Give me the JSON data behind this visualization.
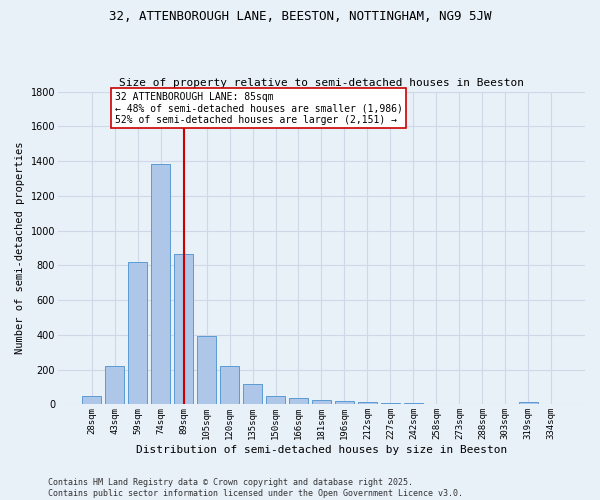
{
  "title_line1": "32, ATTENBOROUGH LANE, BEESTON, NOTTINGHAM, NG9 5JW",
  "title_line2": "Size of property relative to semi-detached houses in Beeston",
  "xlabel": "Distribution of semi-detached houses by size in Beeston",
  "ylabel": "Number of semi-detached properties",
  "bar_labels": [
    "28sqm",
    "43sqm",
    "59sqm",
    "74sqm",
    "89sqm",
    "105sqm",
    "120sqm",
    "135sqm",
    "150sqm",
    "166sqm",
    "181sqm",
    "196sqm",
    "212sqm",
    "227sqm",
    "242sqm",
    "258sqm",
    "273sqm",
    "288sqm",
    "303sqm",
    "319sqm",
    "334sqm"
  ],
  "bar_values": [
    50,
    220,
    820,
    1385,
    865,
    395,
    220,
    120,
    50,
    35,
    25,
    20,
    15,
    10,
    8,
    5,
    0,
    3,
    0,
    12,
    0
  ],
  "bar_color": "#aec6e8",
  "bar_edge_color": "#5b9bd5",
  "vline_x": 4,
  "vline_color": "#cc0000",
  "annotation_text": "32 ATTENBOROUGH LANE: 85sqm\n← 48% of semi-detached houses are smaller (1,986)\n52% of semi-detached houses are larger (2,151) →",
  "annotation_box_color": "#ffffff",
  "annotation_box_edge_color": "#cc0000",
  "ylim": [
    0,
    1800
  ],
  "background_color": "#e8f0f8",
  "grid_color": "#d0d8e8",
  "footnote_line1": "Contains HM Land Registry data © Crown copyright and database right 2025.",
  "footnote_line2": "Contains public sector information licensed under the Open Government Licence v3.0."
}
